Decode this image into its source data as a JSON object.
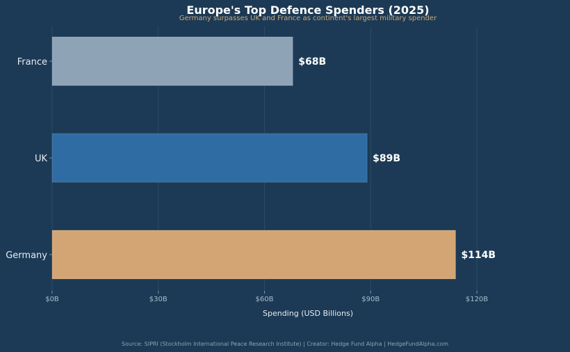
{
  "chart_data": {
    "type": "bar",
    "orientation": "horizontal",
    "title": "Europe's Top Defence Spenders (2025)",
    "subtitle": "Germany surpasses UK and France as continent's largest military spender",
    "xlabel": "Spending (USD Billions)",
    "ylabel": "",
    "categories": [
      "France",
      "UK",
      "Germany"
    ],
    "values": [
      68,
      89,
      114
    ],
    "value_labels": [
      "$68B",
      "$89B",
      "$114B"
    ],
    "bar_colors": [
      "#8fa3b6",
      "#2f6ca3",
      "#d4a574"
    ],
    "xlim": [
      0,
      120
    ],
    "x_ticks": [
      0,
      30,
      60,
      90,
      120
    ],
    "x_tick_labels": [
      "$0B",
      "$30B",
      "$60B",
      "$90B",
      "$120B"
    ],
    "grid": "vertical, faint",
    "source": "Source: SIPRI (Stockholm International Peace Research Institute) | Creator: Hedge Fund Alpha | HedgeFundAlpha.com"
  },
  "colors": {
    "background": "#1c3a55",
    "title": "#ffffff",
    "subtitle": "#c9a97a",
    "tick_text": "#a9bccd",
    "category_text": "#e6edf3",
    "value_label": "#ffffff",
    "source_text": "#8ea3b6"
  }
}
